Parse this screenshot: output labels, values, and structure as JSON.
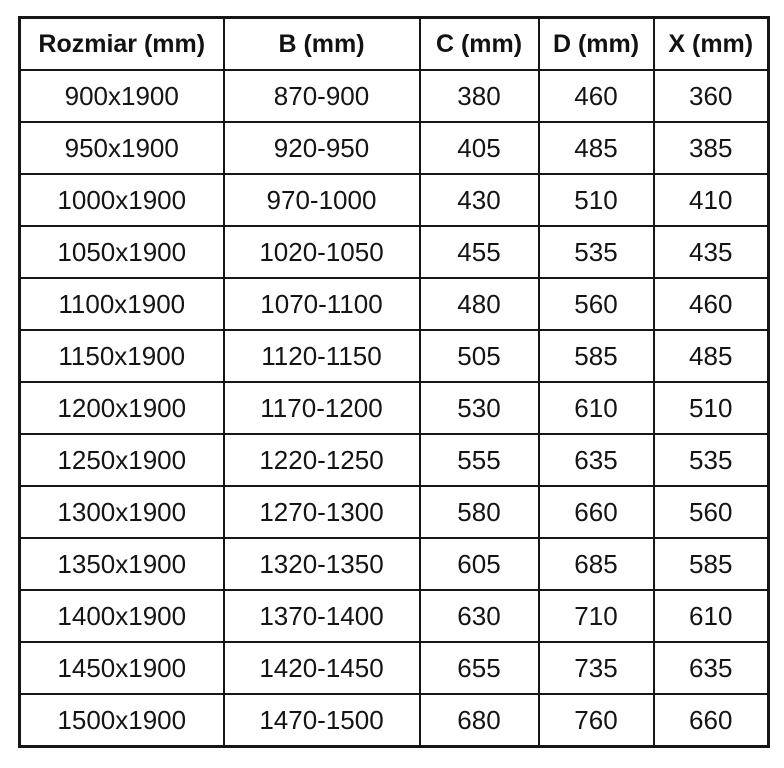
{
  "table": {
    "headers": [
      "Rozmiar (mm)",
      "B (mm)",
      "C (mm)",
      "D (mm)",
      "X (mm)"
    ],
    "rows": [
      [
        "900x1900",
        "870-900",
        "380",
        "460",
        "360"
      ],
      [
        "950x1900",
        "920-950",
        "405",
        "485",
        "385"
      ],
      [
        "1000x1900",
        "970-1000",
        "430",
        "510",
        "410"
      ],
      [
        "1050x1900",
        "1020-1050",
        "455",
        "535",
        "435"
      ],
      [
        "1100x1900",
        "1070-1100",
        "480",
        "560",
        "460"
      ],
      [
        "1150x1900",
        "1120-1150",
        "505",
        "585",
        "485"
      ],
      [
        "1200x1900",
        "1170-1200",
        "530",
        "610",
        "510"
      ],
      [
        "1250x1900",
        "1220-1250",
        "555",
        "635",
        "535"
      ],
      [
        "1300x1900",
        "1270-1300",
        "580",
        "660",
        "560"
      ],
      [
        "1350x1900",
        "1320-1350",
        "605",
        "685",
        "585"
      ],
      [
        "1400x1900",
        "1370-1400",
        "630",
        "710",
        "610"
      ],
      [
        "1450x1900",
        "1420-1450",
        "655",
        "735",
        "635"
      ],
      [
        "1500x1900",
        "1470-1500",
        "680",
        "760",
        "660"
      ]
    ]
  },
  "chart_data": {
    "type": "table",
    "columns": [
      "Rozmiar (mm)",
      "B (mm)",
      "C (mm)",
      "D (mm)",
      "X (mm)"
    ],
    "rows": [
      [
        "900x1900",
        "870-900",
        380,
        460,
        360
      ],
      [
        "950x1900",
        "920-950",
        405,
        485,
        385
      ],
      [
        "1000x1900",
        "970-1000",
        430,
        510,
        410
      ],
      [
        "1050x1900",
        "1020-1050",
        455,
        535,
        435
      ],
      [
        "1100x1900",
        "1070-1100",
        480,
        560,
        460
      ],
      [
        "1150x1900",
        "1120-1150",
        505,
        585,
        485
      ],
      [
        "1200x1900",
        "1170-1200",
        530,
        610,
        510
      ],
      [
        "1250x1900",
        "1220-1250",
        555,
        635,
        535
      ],
      [
        "1300x1900",
        "1270-1300",
        580,
        660,
        560
      ],
      [
        "1350x1900",
        "1320-1350",
        605,
        685,
        585
      ],
      [
        "1400x1900",
        "1370-1400",
        630,
        710,
        610
      ],
      [
        "1450x1900",
        "1420-1450",
        655,
        735,
        635
      ],
      [
        "1500x1900",
        "1470-1500",
        680,
        760,
        660
      ]
    ]
  },
  "colors": {
    "border": "#161616",
    "text": "#141414",
    "background": "#ffffff"
  }
}
